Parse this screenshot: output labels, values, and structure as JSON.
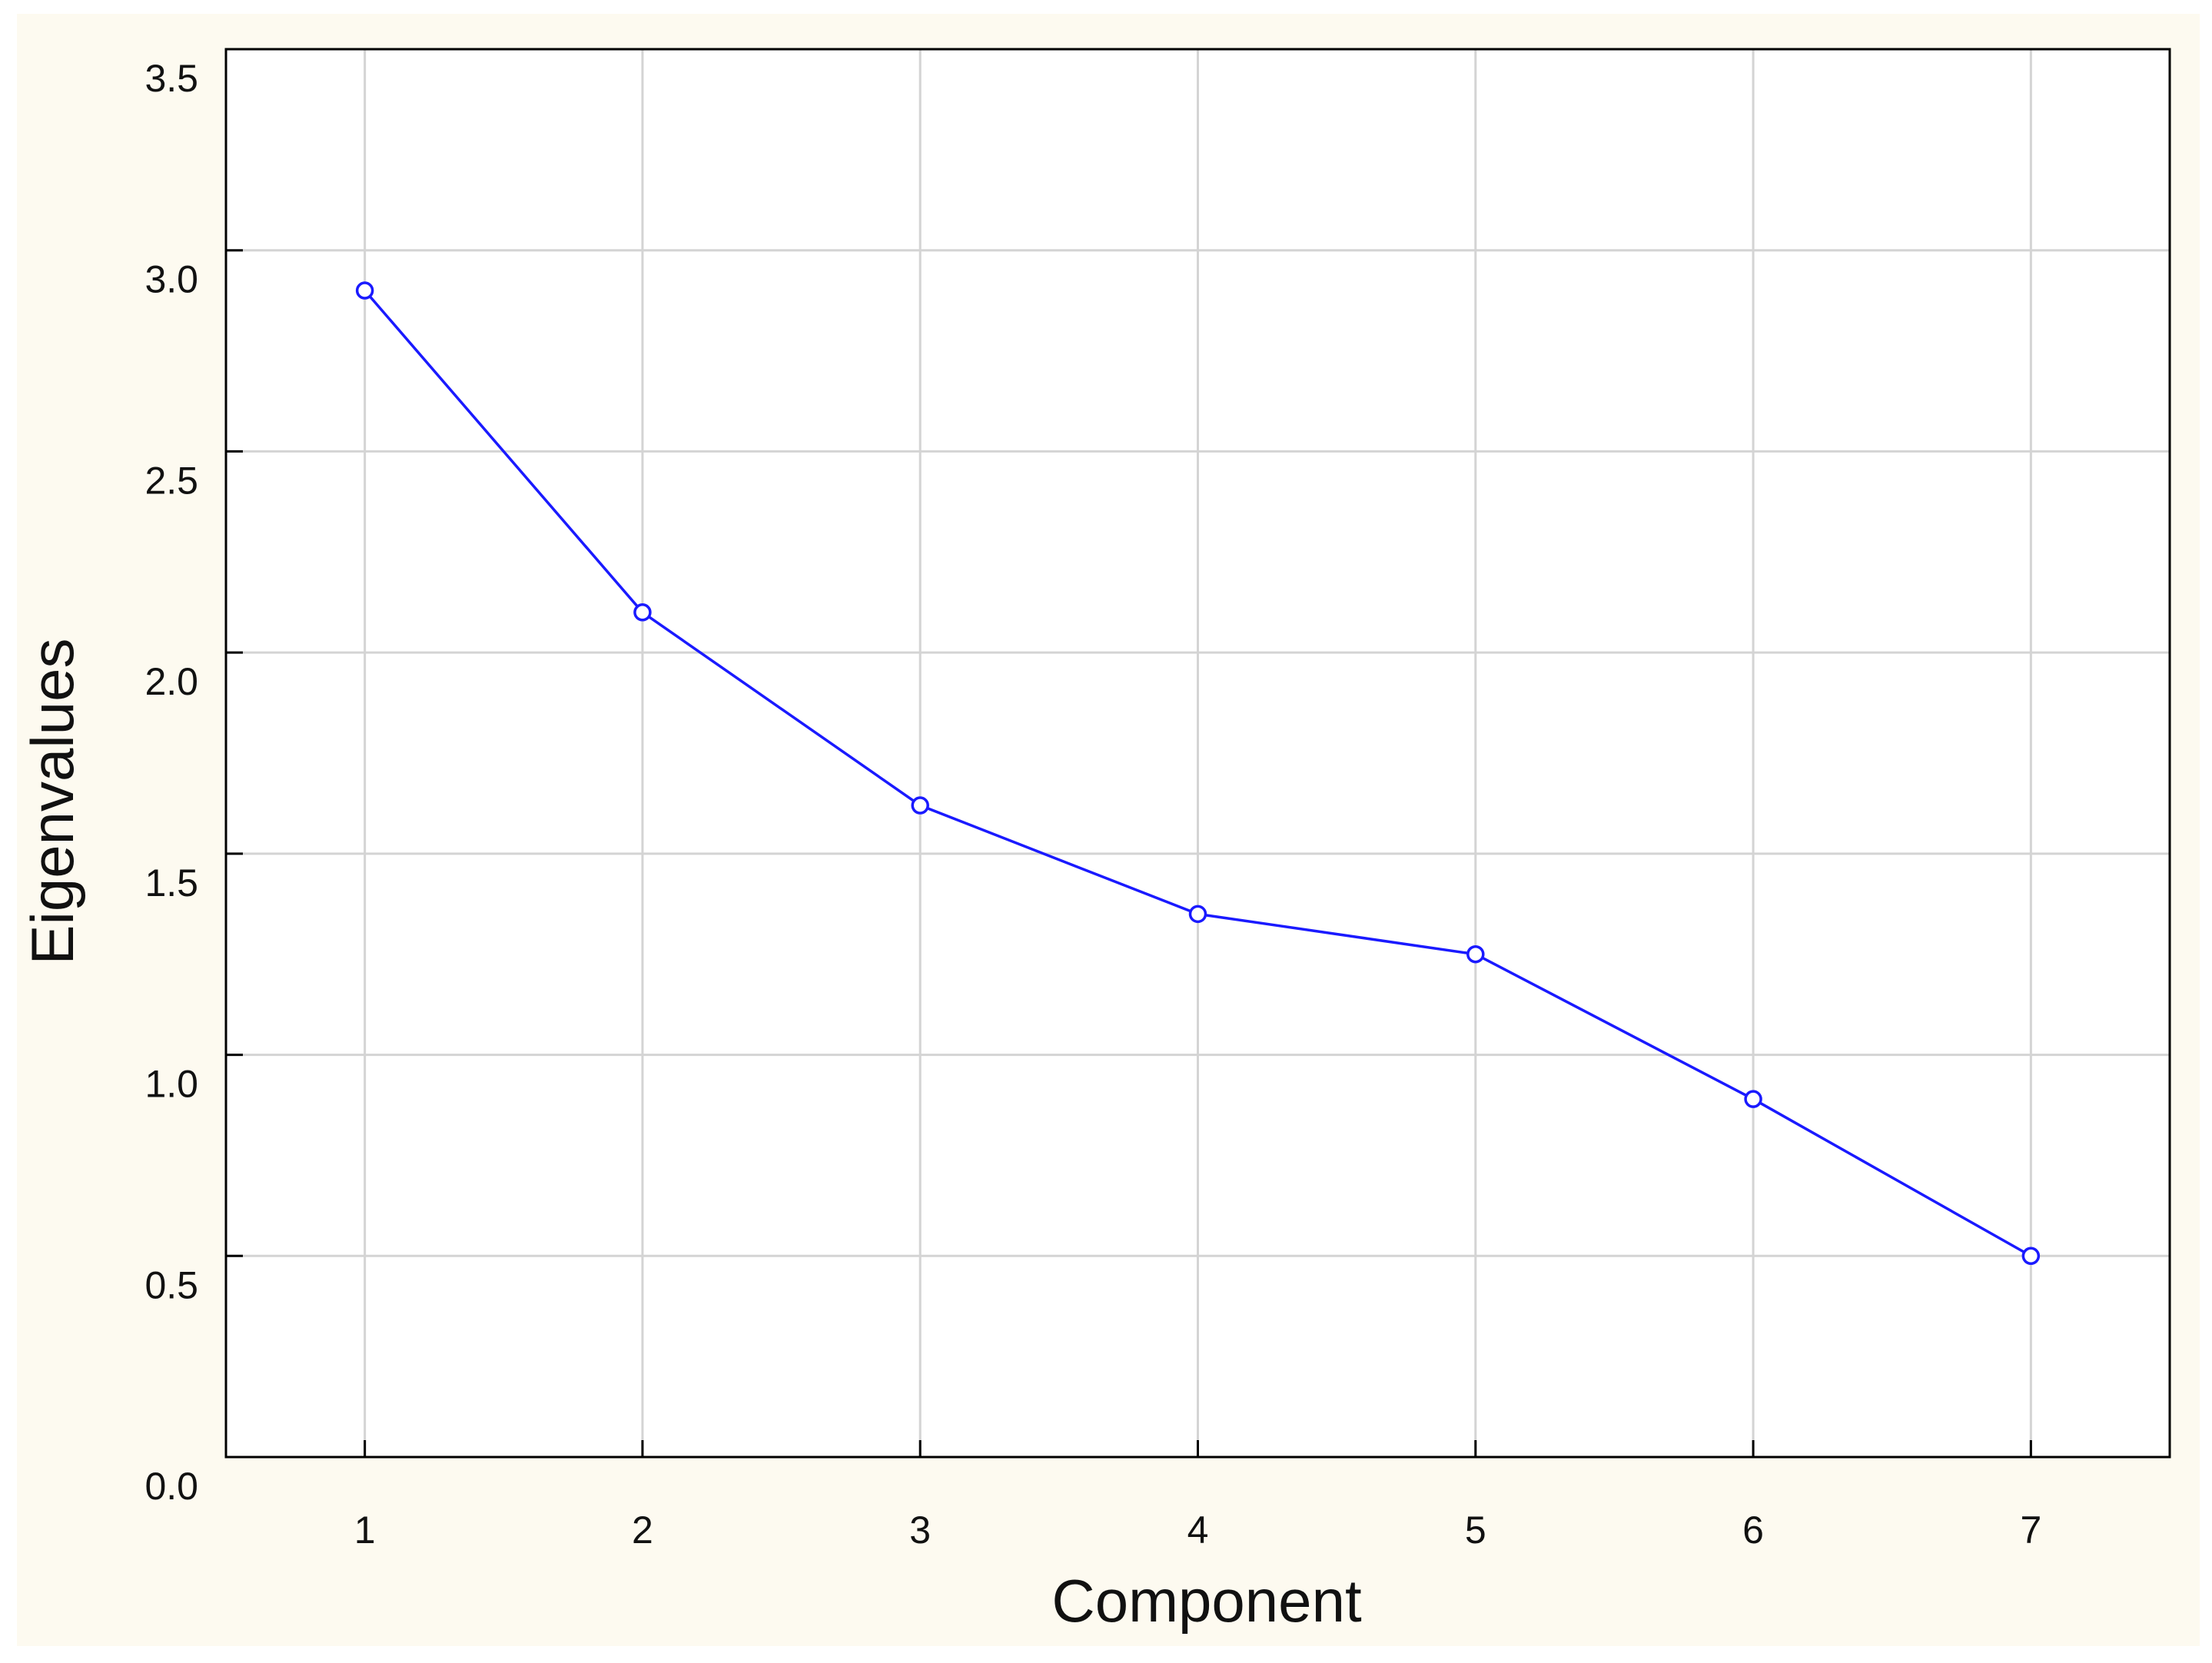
{
  "chart_data": {
    "type": "line",
    "x_label": "Component",
    "y_label": "Eigenvalues",
    "x": [
      1,
      2,
      3,
      4,
      5,
      6,
      7
    ],
    "values": [
      2.9,
      2.1,
      1.62,
      1.35,
      1.25,
      0.89,
      0.5
    ],
    "color": "#1a1aff",
    "xlim": [
      0.5,
      7.5
    ],
    "xticks": [
      1,
      2,
      3,
      4,
      5,
      6,
      7
    ],
    "ylim": [
      0,
      3.5
    ],
    "yticks": [
      {
        "value": 0,
        "label": "0.0"
      },
      0.5,
      {
        "value": 1,
        "label": "1.0"
      },
      1.5,
      {
        "value": 2,
        "label": "2.0"
      },
      2.5,
      {
        "value": 3,
        "label": "3.0"
      },
      3.5
    ],
    "grid": true,
    "marker": "circle"
  }
}
